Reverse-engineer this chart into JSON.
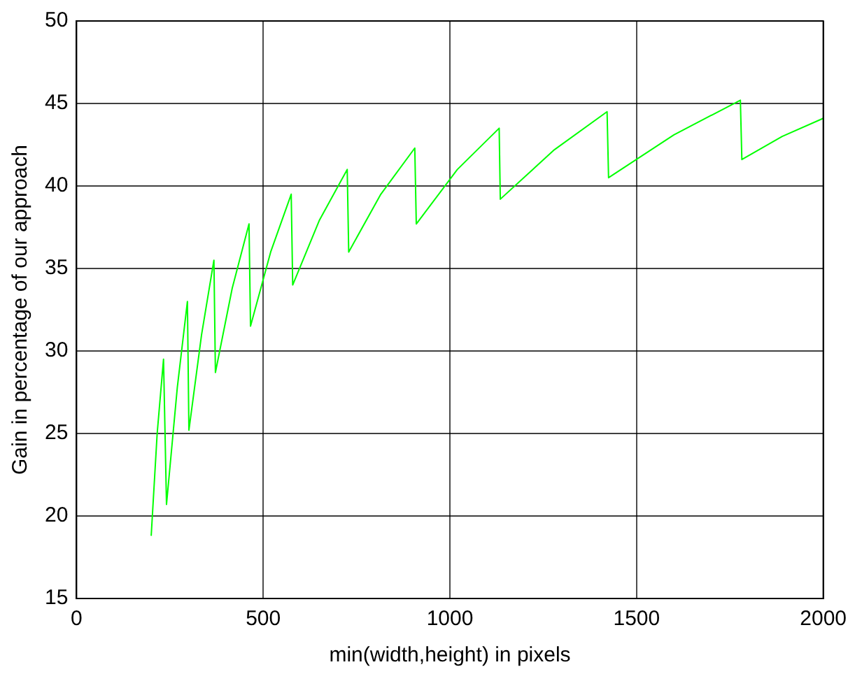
{
  "chart_data": {
    "type": "line",
    "xlabel": "min(width,height) in pixels",
    "ylabel": "Gain in percentage of our approach",
    "x": [
      200,
      216,
      233,
      241,
      270,
      297,
      301,
      335,
      368,
      372,
      417,
      462,
      466,
      520,
      575,
      579,
      650,
      725,
      729,
      815,
      906,
      910,
      1020,
      1132,
      1135,
      1280,
      1421,
      1425,
      1600,
      1778,
      1782,
      1890,
      2000
    ],
    "series": [
      {
        "color": "#00ff00",
        "values": [
          18.8,
          25,
          29.5,
          20.7,
          27.8,
          33.0,
          25.2,
          31.0,
          35.5,
          28.7,
          33.8,
          37.7,
          31.5,
          36.0,
          39.5,
          34.0,
          37.9,
          41.0,
          36.0,
          39.5,
          42.3,
          37.7,
          41.0,
          43.5,
          39.2,
          42.2,
          44.5,
          40.5,
          43.1,
          45.2,
          41.6,
          43.0,
          44.1
        ]
      }
    ],
    "xlim": [
      0,
      2000
    ],
    "xticks": [
      0,
      500,
      1000,
      1500,
      2000
    ],
    "ylim": [
      15,
      50
    ],
    "yticks": [
      15,
      20,
      25,
      30,
      35,
      40,
      45,
      50
    ],
    "grid": true,
    "legend": false,
    "marker": "none",
    "line_style": "solid"
  }
}
